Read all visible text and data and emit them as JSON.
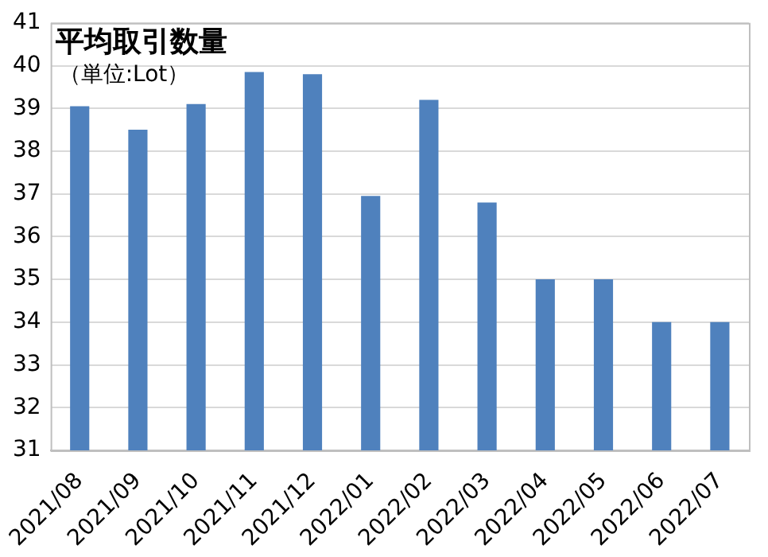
{
  "chart_data": {
    "type": "bar",
    "title": "平均取引数量",
    "subtitle": "（単位:Lot）",
    "categories": [
      "2021/08",
      "2021/09",
      "2021/10",
      "2021/11",
      "2021/12",
      "2022/01",
      "2022/02",
      "2022/03",
      "2022/04",
      "2022/05",
      "2022/06",
      "2022/07"
    ],
    "values": [
      39.05,
      38.5,
      39.1,
      39.85,
      39.8,
      36.95,
      39.2,
      36.8,
      35.0,
      35.0,
      34.0,
      34.0
    ],
    "color": "#4f81bd",
    "ylim": [
      31,
      41
    ],
    "yticks": [
      31,
      32,
      33,
      34,
      35,
      36,
      37,
      38,
      39,
      40,
      41
    ],
    "grid": "y"
  }
}
